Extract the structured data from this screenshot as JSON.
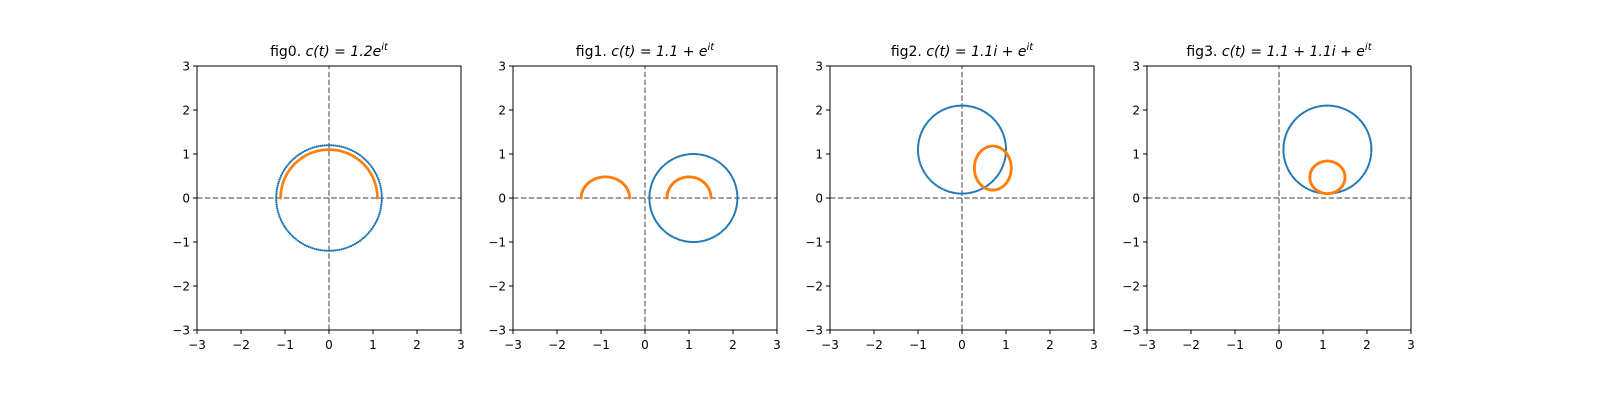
{
  "chart_data": [
    {
      "type": "scatter",
      "title_prefix": "fig0. ",
      "title_math": [
        "c(t) = 1.2e",
        "it"
      ],
      "xlim": [
        -3,
        3
      ],
      "ylim": [
        -3,
        3
      ],
      "xticks": [
        -3,
        -2,
        -1,
        0,
        1,
        2,
        3
      ],
      "yticks": [
        -3,
        -2,
        -1,
        0,
        1,
        2,
        3
      ],
      "xlabel": "",
      "ylabel": "",
      "reference_lines": {
        "x": 0,
        "y": 0,
        "style": "dashed",
        "color": "#808080"
      },
      "series": [
        {
          "kind": "circle",
          "center": [
            0,
            0
          ],
          "radius": 1.2,
          "t_range": [
            0,
            6.283
          ],
          "color": "#1f77b4",
          "marker": "dot"
        },
        {
          "kind": "arc",
          "center": [
            0,
            0
          ],
          "rx": 1.1,
          "ry": 1.1,
          "t_range": [
            0,
            3.1416
          ],
          "color": "#ff7f0e",
          "marker": "dot"
        }
      ]
    },
    {
      "type": "scatter",
      "title_prefix": "fig1. ",
      "title_math": [
        "c(t) = 1.1 + e",
        "it"
      ],
      "xlim": [
        -3,
        3
      ],
      "ylim": [
        -3,
        3
      ],
      "xticks": [
        -3,
        -2,
        -1,
        0,
        1,
        2,
        3
      ],
      "yticks": [
        -3,
        -2,
        -1,
        0,
        1,
        2,
        3
      ],
      "xlabel": "",
      "ylabel": "",
      "reference_lines": {
        "x": 0,
        "y": 0,
        "style": "dashed",
        "color": "#808080"
      },
      "series": [
        {
          "kind": "circle",
          "center": [
            1.1,
            0
          ],
          "radius": 1.0,
          "t_range": [
            0,
            6.283
          ],
          "color": "#1f77b4",
          "marker": "dot"
        },
        {
          "kind": "arc",
          "center": [
            1.0,
            0
          ],
          "rx": 0.5,
          "ry": 0.48,
          "t_range": [
            0,
            3.1416
          ],
          "color": "#ff7f0e",
          "marker": "dot"
        },
        {
          "kind": "arc",
          "center": [
            -0.9,
            0
          ],
          "rx": 0.55,
          "ry": 0.48,
          "t_range": [
            0,
            3.1416
          ],
          "color": "#ff7f0e",
          "marker": "dot"
        }
      ]
    },
    {
      "type": "scatter",
      "title_prefix": "fig2. ",
      "title_math": [
        "c(t) = 1.1i + e",
        "it"
      ],
      "xlim": [
        -3,
        3
      ],
      "ylim": [
        -3,
        3
      ],
      "xticks": [
        -3,
        -2,
        -1,
        0,
        1,
        2,
        3
      ],
      "yticks": [
        -3,
        -2,
        -1,
        0,
        1,
        2,
        3
      ],
      "xlabel": "",
      "ylabel": "",
      "reference_lines": {
        "x": 0,
        "y": 0,
        "style": "dashed",
        "color": "#808080"
      },
      "series": [
        {
          "kind": "circle",
          "center": [
            0,
            1.1
          ],
          "radius": 1.0,
          "t_range": [
            0,
            6.283
          ],
          "color": "#1f77b4",
          "marker": "dot"
        },
        {
          "kind": "loop",
          "center": [
            0.7,
            0.68
          ],
          "rx": 0.42,
          "ry": 0.5,
          "t_range": [
            0,
            6.283
          ],
          "color": "#ff7f0e",
          "marker": "dot"
        }
      ]
    },
    {
      "type": "scatter",
      "title_prefix": "fig3. ",
      "title_math": [
        "c(t) = 1.1 + 1.1i + e",
        "it"
      ],
      "xlim": [
        -3,
        3
      ],
      "ylim": [
        -3,
        3
      ],
      "xticks": [
        -3,
        -2,
        -1,
        0,
        1,
        2,
        3
      ],
      "yticks": [
        -3,
        -2,
        -1,
        0,
        1,
        2,
        3
      ],
      "xlabel": "",
      "ylabel": "",
      "reference_lines": {
        "x": 0,
        "y": 0,
        "style": "dashed",
        "color": "#808080"
      },
      "series": [
        {
          "kind": "circle",
          "center": [
            1.1,
            1.1
          ],
          "radius": 1.0,
          "t_range": [
            0,
            6.283
          ],
          "color": "#1f77b4",
          "marker": "dot"
        },
        {
          "kind": "loop",
          "center": [
            1.1,
            0.47
          ],
          "rx": 0.4,
          "ry": 0.37,
          "t_range": [
            0,
            6.283
          ],
          "color": "#ff7f0e",
          "marker": "dot"
        }
      ]
    }
  ]
}
